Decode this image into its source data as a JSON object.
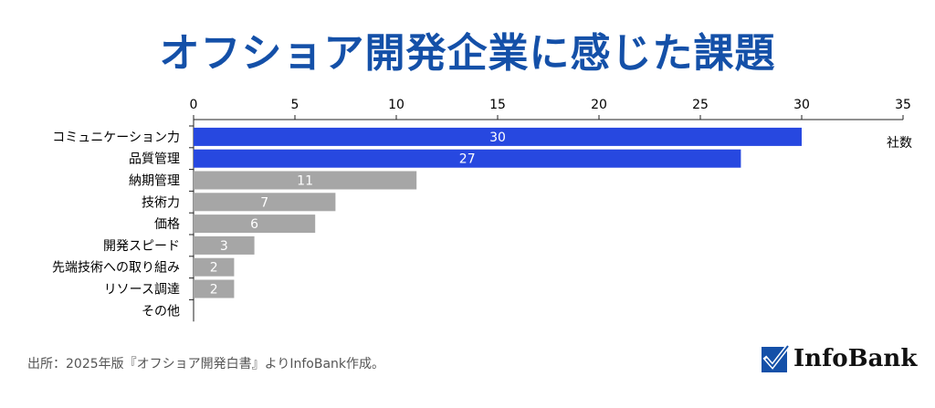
{
  "title": "オフショア開発企業に感じた課題",
  "source": "出所：2025年版『オフショア開発白書』よりInfoBank作成。",
  "logo": {
    "text": "InfoBank",
    "icon": "checkmark-box-icon",
    "color": "#1450a8"
  },
  "chart_data": {
    "type": "bar",
    "orientation": "horizontal",
    "categories": [
      "コミュニケーション力",
      "品質管理",
      "納期管理",
      "技術力",
      "価格",
      "開発スピード",
      "先端技術への取り組み",
      "リソース調達",
      "その他"
    ],
    "values": [
      30,
      27,
      11,
      7,
      6,
      3,
      2,
      2,
      0
    ],
    "unit_label": "社数",
    "xlim": [
      0,
      35
    ],
    "xticks": [
      0,
      5,
      10,
      15,
      20,
      25,
      30,
      35
    ],
    "axis_position": "top",
    "data_labels": true,
    "grid": false,
    "colors": {
      "highlight": "#2748e0",
      "default": "#a6a6a6",
      "title": "#1450a8"
    },
    "highlighted_categories": [
      "コミュニケーション力",
      "品質管理"
    ]
  }
}
